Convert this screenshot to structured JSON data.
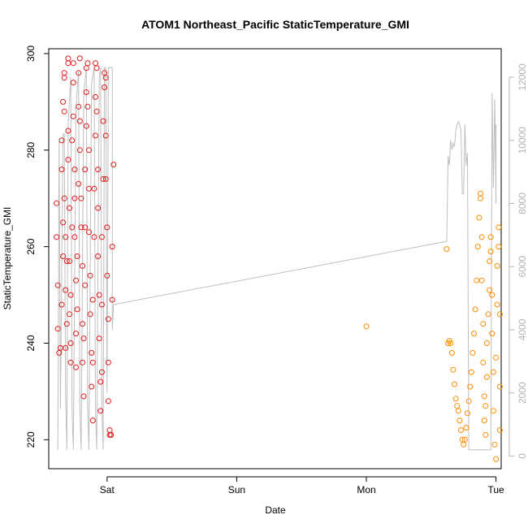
{
  "chart_data": {
    "type": "scatter",
    "title": "ATOM1 Northeast_Pacific StaticTemperature_GMI",
    "xlabel": "Date",
    "ylabel": "StaticTemperature_GMI",
    "x_ticks": [
      {
        "label": "Sat",
        "value": 1
      },
      {
        "label": "Sun",
        "value": 2
      },
      {
        "label": "Mon",
        "value": 3
      },
      {
        "label": "Tue",
        "value": 4
      }
    ],
    "y_ticks": [
      220,
      240,
      260,
      280,
      300
    ],
    "y2_ticks": [
      0,
      2000,
      4000,
      6000,
      8000,
      10000,
      12000
    ],
    "xlim": [
      0.55,
      4.04
    ],
    "ylim": [
      214,
      301
    ],
    "y2lim": [
      -400,
      12900
    ],
    "grid": false,
    "colors": {
      "series_1": "#e31a1c",
      "series_2": "#ff8c00",
      "line": "#bfbfbf",
      "right_axis": "#b3b3b3"
    },
    "series": [
      {
        "marker": "open-circle",
        "color": "#e31a1c",
        "points": [
          [
            0.61,
            269
          ],
          [
            0.61,
            262
          ],
          [
            0.62,
            252
          ],
          [
            0.62,
            243
          ],
          [
            0.63,
            238
          ],
          [
            0.64,
            239
          ],
          [
            0.65,
            248
          ],
          [
            0.65,
            282
          ],
          [
            0.65,
            276
          ],
          [
            0.66,
            265
          ],
          [
            0.66,
            258
          ],
          [
            0.66,
            290
          ],
          [
            0.67,
            295
          ],
          [
            0.67,
            296
          ],
          [
            0.67,
            288
          ],
          [
            0.67,
            270
          ],
          [
            0.68,
            262
          ],
          [
            0.68,
            251
          ],
          [
            0.68,
            239
          ],
          [
            0.69,
            244
          ],
          [
            0.69,
            257
          ],
          [
            0.7,
            278
          ],
          [
            0.7,
            298
          ],
          [
            0.7,
            299
          ],
          [
            0.7,
            284
          ],
          [
            0.71,
            268
          ],
          [
            0.71,
            257
          ],
          [
            0.71,
            246
          ],
          [
            0.72,
            240
          ],
          [
            0.72,
            236
          ],
          [
            0.72,
            250
          ],
          [
            0.73,
            264
          ],
          [
            0.73,
            282
          ],
          [
            0.74,
            294
          ],
          [
            0.74,
            298
          ],
          [
            0.74,
            287
          ],
          [
            0.75,
            276
          ],
          [
            0.75,
            270
          ],
          [
            0.75,
            262
          ],
          [
            0.76,
            253
          ],
          [
            0.76,
            242
          ],
          [
            0.76,
            235
          ],
          [
            0.77,
            247
          ],
          [
            0.77,
            258
          ],
          [
            0.78,
            273
          ],
          [
            0.78,
            289
          ],
          [
            0.78,
            296
          ],
          [
            0.79,
            299
          ],
          [
            0.79,
            286
          ],
          [
            0.79,
            280
          ],
          [
            0.8,
            270
          ],
          [
            0.8,
            264
          ],
          [
            0.81,
            256
          ],
          [
            0.81,
            244
          ],
          [
            0.81,
            236
          ],
          [
            0.82,
            229
          ],
          [
            0.82,
            241
          ],
          [
            0.83,
            252
          ],
          [
            0.83,
            264
          ],
          [
            0.83,
            276
          ],
          [
            0.84,
            285
          ],
          [
            0.84,
            292
          ],
          [
            0.84,
            297
          ],
          [
            0.85,
            298
          ],
          [
            0.85,
            289
          ],
          [
            0.86,
            280
          ],
          [
            0.86,
            272
          ],
          [
            0.86,
            263
          ],
          [
            0.87,
            254
          ],
          [
            0.87,
            246
          ],
          [
            0.88,
            238
          ],
          [
            0.88,
            231
          ],
          [
            0.89,
            224
          ],
          [
            0.89,
            236
          ],
          [
            0.89,
            249
          ],
          [
            0.9,
            262
          ],
          [
            0.9,
            272
          ],
          [
            0.91,
            283
          ],
          [
            0.91,
            291
          ],
          [
            0.91,
            298
          ],
          [
            0.92,
            297
          ],
          [
            0.92,
            288
          ],
          [
            0.93,
            276
          ],
          [
            0.93,
            268
          ],
          [
            0.93,
            258
          ],
          [
            0.94,
            250
          ],
          [
            0.94,
            241
          ],
          [
            0.95,
            232
          ],
          [
            0.95,
            226
          ],
          [
            0.96,
            234
          ],
          [
            0.96,
            248
          ],
          [
            0.96,
            262
          ],
          [
            0.97,
            274
          ],
          [
            0.97,
            286
          ],
          [
            0.98,
            293
          ],
          [
            0.98,
            296
          ],
          [
            0.99,
            295
          ],
          [
            0.99,
            283
          ],
          [
            0.99,
            274
          ],
          [
            1.0,
            264
          ],
          [
            1.0,
            254
          ],
          [
            1.01,
            245
          ],
          [
            1.01,
            236
          ],
          [
            1.01,
            228
          ],
          [
            1.02,
            222
          ],
          [
            1.02,
            221
          ],
          [
            1.03,
            221
          ],
          [
            1.03,
            221
          ],
          [
            1.04,
            249
          ],
          [
            1.04,
            260
          ],
          [
            1.05,
            277
          ]
        ]
      },
      {
        "marker": "open-circle",
        "color": "#ff8c00",
        "points": [
          [
            3.0,
            243.5
          ],
          [
            3.62,
            259.5
          ],
          [
            3.63,
            240
          ],
          [
            3.64,
            240.5
          ],
          [
            3.65,
            240
          ],
          [
            3.66,
            238
          ],
          [
            3.67,
            234.5
          ],
          [
            3.68,
            231.5
          ],
          [
            3.69,
            228.5
          ],
          [
            3.7,
            227
          ],
          [
            3.71,
            226
          ],
          [
            3.72,
            224
          ],
          [
            3.73,
            222
          ],
          [
            3.74,
            220
          ],
          [
            3.75,
            219
          ],
          [
            3.76,
            220
          ],
          [
            3.77,
            222.5
          ],
          [
            3.78,
            225.5
          ],
          [
            3.79,
            228
          ],
          [
            3.8,
            231
          ],
          [
            3.81,
            234
          ],
          [
            3.82,
            238
          ],
          [
            3.83,
            242
          ],
          [
            3.84,
            247
          ],
          [
            3.85,
            253
          ],
          [
            3.86,
            260
          ],
          [
            3.87,
            266
          ],
          [
            3.88,
            271
          ],
          [
            3.88,
            270
          ],
          [
            3.89,
            262
          ],
          [
            3.89,
            253
          ],
          [
            3.9,
            244
          ],
          [
            3.9,
            236
          ],
          [
            3.91,
            229
          ],
          [
            3.91,
            224
          ],
          [
            3.92,
            221
          ],
          [
            3.92,
            227
          ],
          [
            3.93,
            233
          ],
          [
            3.93,
            240
          ],
          [
            3.94,
            246
          ],
          [
            3.95,
            251
          ],
          [
            3.95,
            257
          ],
          [
            3.96,
            262
          ],
          [
            3.96,
            259
          ],
          [
            3.97,
            250
          ],
          [
            3.97,
            242
          ],
          [
            3.98,
            234
          ],
          [
            3.98,
            226
          ],
          [
            3.99,
            219
          ],
          [
            4.0,
            216
          ],
          [
            4.0,
            237
          ],
          [
            4.01,
            248
          ],
          [
            4.01,
            256
          ],
          [
            4.02,
            264
          ],
          [
            4.02,
            260
          ],
          [
            4.03,
            246
          ],
          [
            4.03,
            231
          ],
          [
            4.03,
            222
          ]
        ]
      }
    ],
    "secondary_line": {
      "axis": "right",
      "color": "#bfbfbf",
      "points": [
        [
          0.62,
          200
        ],
        [
          0.63,
          10000
        ],
        [
          0.64,
          1500
        ],
        [
          0.66,
          10200
        ],
        [
          0.67,
          10200
        ],
        [
          0.68,
          2000
        ],
        [
          0.69,
          200
        ],
        [
          0.7,
          10500
        ],
        [
          0.72,
          12000
        ],
        [
          0.73,
          1500
        ],
        [
          0.74,
          200
        ],
        [
          0.76,
          11000
        ],
        [
          0.78,
          12200
        ],
        [
          0.79,
          1500
        ],
        [
          0.8,
          200
        ],
        [
          0.82,
          11500
        ],
        [
          0.84,
          12300
        ],
        [
          0.85,
          1500
        ],
        [
          0.86,
          200
        ],
        [
          0.88,
          11800
        ],
        [
          0.9,
          12300
        ],
        [
          0.91,
          1500
        ],
        [
          0.92,
          200
        ],
        [
          0.94,
          12000
        ],
        [
          0.95,
          12300
        ],
        [
          0.96,
          1500
        ],
        [
          0.97,
          200
        ],
        [
          0.98,
          12300
        ],
        [
          0.99,
          12300
        ],
        [
          1.0,
          2000
        ],
        [
          1.01,
          12300
        ],
        [
          1.02,
          12300
        ],
        [
          1.03,
          12300
        ],
        [
          1.04,
          12300
        ],
        [
          1.04,
          4000
        ],
        [
          1.05,
          4800
        ],
        [
          3.62,
          6800
        ],
        [
          3.63,
          9500
        ],
        [
          3.64,
          9200
        ],
        [
          3.65,
          10000
        ],
        [
          3.66,
          9700
        ],
        [
          3.67,
          9900
        ],
        [
          3.68,
          9800
        ],
        [
          3.69,
          10300
        ],
        [
          3.7,
          10500
        ],
        [
          3.71,
          10600
        ],
        [
          3.72,
          10500
        ],
        [
          3.73,
          10300
        ],
        [
          3.74,
          8300
        ],
        [
          3.75,
          8300
        ],
        [
          3.76,
          10500
        ],
        [
          3.77,
          9200
        ],
        [
          3.78,
          9600
        ],
        [
          3.79,
          200
        ],
        [
          3.8,
          200
        ],
        [
          3.81,
          200
        ],
        [
          3.82,
          200
        ],
        [
          3.83,
          200
        ],
        [
          3.84,
          200
        ],
        [
          3.85,
          200
        ],
        [
          3.86,
          200
        ],
        [
          3.87,
          200
        ],
        [
          3.88,
          200
        ],
        [
          3.89,
          200
        ],
        [
          3.9,
          200
        ],
        [
          3.91,
          200
        ],
        [
          3.92,
          200
        ],
        [
          3.93,
          200
        ],
        [
          3.94,
          200
        ],
        [
          3.95,
          200
        ],
        [
          3.96,
          200
        ],
        [
          3.97,
          11500
        ],
        [
          3.98,
          8500
        ],
        [
          3.99,
          11300
        ],
        [
          4.0,
          8000
        ],
        [
          4.0,
          10500
        ]
      ]
    }
  }
}
